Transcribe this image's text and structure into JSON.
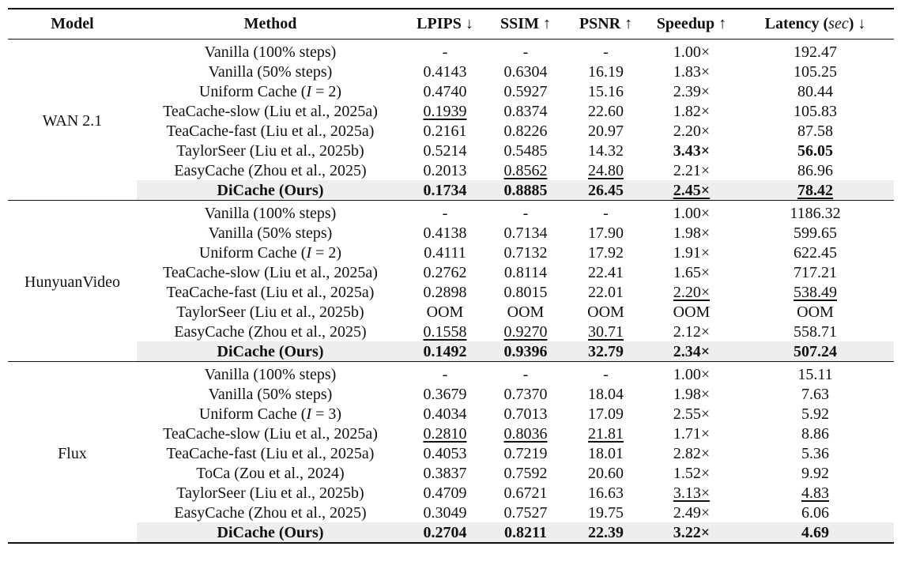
{
  "headers": {
    "model": "Model",
    "method": "Method",
    "lpips": "LPIPS ↓",
    "ssim": "SSIM ↑",
    "psnr": "PSNR ↑",
    "speedup": "Speedup ↑",
    "latency_prefix": "Latency (",
    "latency_unit": "sec",
    "latency_suffix": ") ↓"
  },
  "groups": [
    {
      "model": "WAN 2.1",
      "rows": [
        {
          "method": "Vanilla (100% steps)",
          "lpips": "-",
          "ssim": "-",
          "psnr": "-",
          "speedup": "1.00×",
          "latency": "192.47"
        },
        {
          "method": "Vanilla (50% steps)",
          "lpips": "0.4143",
          "ssim": "0.6304",
          "psnr": "16.19",
          "speedup": "1.83×",
          "latency": "105.25"
        },
        {
          "method": "Uniform Cache (I = 2)",
          "lpips": "0.4740",
          "ssim": "0.5927",
          "psnr": "15.16",
          "speedup": "2.39×",
          "latency": "80.44"
        },
        {
          "method": "TeaCache-slow (Liu et al., 2025a)",
          "lpips": "0.1939",
          "ssim": "0.8374",
          "psnr": "22.60",
          "speedup": "1.82×",
          "latency": "105.83"
        },
        {
          "method": "TeaCache-fast (Liu et al., 2025a)",
          "lpips": "0.2161",
          "ssim": "0.8226",
          "psnr": "20.97",
          "speedup": "2.20×",
          "latency": "87.58"
        },
        {
          "method": "TaylorSeer (Liu et al., 2025b)",
          "lpips": "0.5214",
          "ssim": "0.5485",
          "psnr": "14.32",
          "speedup": "3.43×",
          "latency": "56.05"
        },
        {
          "method": "EasyCache (Zhou et al., 2025)",
          "lpips": "0.2013",
          "ssim": "0.8562",
          "psnr": "24.80",
          "speedup": "2.21×",
          "latency": "86.96"
        },
        {
          "method": "DiCache (Ours)",
          "lpips": "0.1734",
          "ssim": "0.8885",
          "psnr": "26.45",
          "speedup": "2.45×",
          "latency": "78.42"
        }
      ]
    },
    {
      "model": "HunyuanVideo",
      "rows": [
        {
          "method": "Vanilla (100% steps)",
          "lpips": "-",
          "ssim": "-",
          "psnr": "-",
          "speedup": "1.00×",
          "latency": "1186.32"
        },
        {
          "method": "Vanilla (50% steps)",
          "lpips": "0.4138",
          "ssim": "0.7134",
          "psnr": "17.90",
          "speedup": "1.98×",
          "latency": "599.65"
        },
        {
          "method": "Uniform Cache (I = 2)",
          "lpips": "0.4111",
          "ssim": "0.7132",
          "psnr": "17.92",
          "speedup": "1.91×",
          "latency": "622.45"
        },
        {
          "method": "TeaCache-slow (Liu et al., 2025a)",
          "lpips": "0.2762",
          "ssim": "0.8114",
          "psnr": "22.41",
          "speedup": "1.65×",
          "latency": "717.21"
        },
        {
          "method": "TeaCache-fast (Liu et al., 2025a)",
          "lpips": "0.2898",
          "ssim": "0.8015",
          "psnr": "22.01",
          "speedup": "2.20×",
          "latency": "538.49"
        },
        {
          "method": "TaylorSeer (Liu et al., 2025b)",
          "lpips": "OOM",
          "ssim": "OOM",
          "psnr": "OOM",
          "speedup": "OOM",
          "latency": "OOM"
        },
        {
          "method": "EasyCache (Zhou et al., 2025)",
          "lpips": "0.1558",
          "ssim": "0.9270",
          "psnr": "30.71",
          "speedup": "2.12×",
          "latency": "558.71"
        },
        {
          "method": "DiCache (Ours)",
          "lpips": "0.1492",
          "ssim": "0.9396",
          "psnr": "32.79",
          "speedup": "2.34×",
          "latency": "507.24"
        }
      ]
    },
    {
      "model": "Flux",
      "rows": [
        {
          "method": "Vanilla (100% steps)",
          "lpips": "-",
          "ssim": "-",
          "psnr": "-",
          "speedup": "1.00×",
          "latency": "15.11"
        },
        {
          "method": "Vanilla (50% steps)",
          "lpips": "0.3679",
          "ssim": "0.7370",
          "psnr": "18.04",
          "speedup": "1.98×",
          "latency": "7.63"
        },
        {
          "method": "Uniform Cache (I = 3)",
          "lpips": "0.4034",
          "ssim": "0.7013",
          "psnr": "17.09",
          "speedup": "2.55×",
          "latency": "5.92"
        },
        {
          "method": "TeaCache-slow (Liu et al., 2025a)",
          "lpips": "0.2810",
          "ssim": "0.8036",
          "psnr": "21.81",
          "speedup": "1.71×",
          "latency": "8.86"
        },
        {
          "method": "TeaCache-fast (Liu et al., 2025a)",
          "lpips": "0.4053",
          "ssim": "0.7219",
          "psnr": "18.01",
          "speedup": "2.82×",
          "latency": "5.36"
        },
        {
          "method": "ToCa (Zou et al., 2024)",
          "lpips": "0.3837",
          "ssim": "0.7592",
          "psnr": "20.60",
          "speedup": "1.52×",
          "latency": "9.92"
        },
        {
          "method": "TaylorSeer (Liu et al., 2025b)",
          "lpips": "0.4709",
          "ssim": "0.6721",
          "psnr": "16.63",
          "speedup": "3.13×",
          "latency": "4.83"
        },
        {
          "method": "EasyCache (Zhou et al., 2025)",
          "lpips": "0.3049",
          "ssim": "0.7527",
          "psnr": "19.75",
          "speedup": "2.49×",
          "latency": "6.06"
        },
        {
          "method": "DiCache (Ours)",
          "lpips": "0.2704",
          "ssim": "0.8211",
          "psnr": "22.39",
          "speedup": "3.22×",
          "latency": "4.69"
        }
      ]
    }
  ]
}
